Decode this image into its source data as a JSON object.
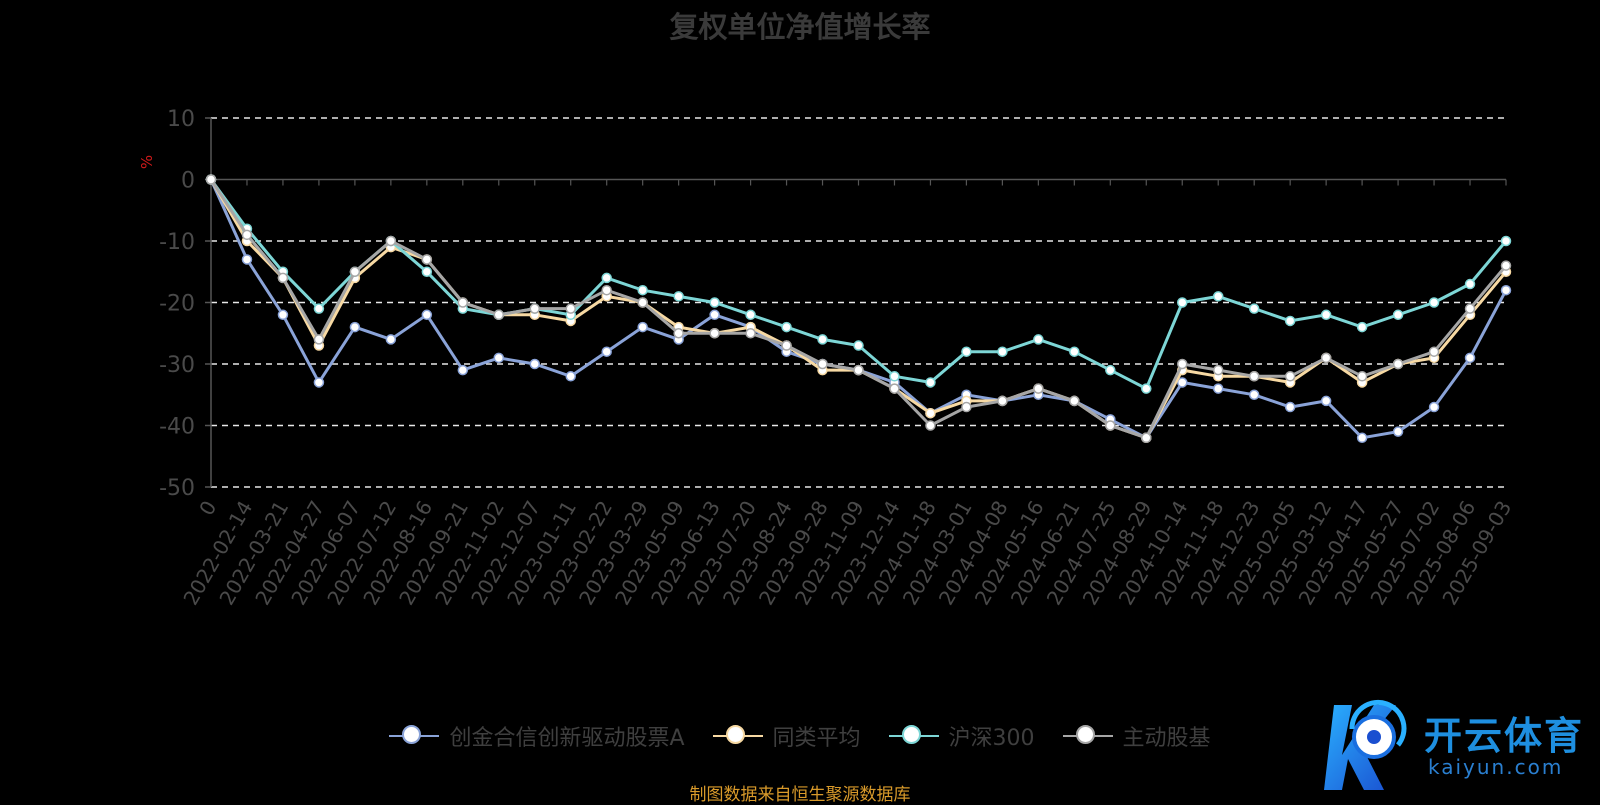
{
  "chart_data": {
    "type": "line",
    "title": "复权单位净值增长率",
    "ylabel": "%",
    "ylim": [
      -50,
      10
    ],
    "yticks": [
      "10",
      "0",
      "-10",
      "-20",
      "-30",
      "-40",
      "-50"
    ],
    "grid": true,
    "legend_position": "bottom",
    "categories": [
      "0",
      "2022-02-14",
      "2022-03-21",
      "2022-04-27",
      "2022-06-07",
      "2022-07-12",
      "2022-08-16",
      "2022-09-21",
      "2022-11-02",
      "2022-12-07",
      "2023-01-11",
      "2023-02-22",
      "2023-03-29",
      "2023-05-09",
      "2023-06-13",
      "2023-07-20",
      "2023-08-24",
      "2023-09-28",
      "2023-11-09",
      "2023-12-14",
      "2024-01-18",
      "2024-03-01",
      "2024-04-08",
      "2024-05-16",
      "2024-06-21",
      "2024-07-25",
      "2024-08-29",
      "2024-10-14",
      "2024-11-18",
      "2024-12-23",
      "2025-02-05",
      "2025-03-12",
      "2025-04-17",
      "2025-05-27",
      "2025-07-02",
      "2025-08-06",
      "2025-09-03"
    ],
    "series": [
      {
        "name": "创金合信创新驱动股票A",
        "color": "#8aa3d8",
        "values": [
          0,
          -13,
          -22,
          -33,
          -24,
          -26,
          -22,
          -31,
          -29,
          -30,
          -32,
          -28,
          -24,
          -26,
          -22,
          -24,
          -28,
          -30,
          -31,
          -33,
          -38,
          -35,
          -36,
          -35,
          -36,
          -39,
          -42,
          -33,
          -34,
          -35,
          -37,
          -36,
          -42,
          -41,
          -37,
          -29,
          -18
        ]
      },
      {
        "name": "同类平均",
        "color": "#f7d9a3",
        "values": [
          0,
          -10,
          -16,
          -27,
          -16,
          -11,
          -13,
          -20,
          -22,
          -22,
          -23,
          -19,
          -20,
          -24,
          -25,
          -24,
          -27,
          -31,
          -31,
          -34,
          -38,
          -36,
          -36,
          -34,
          -36,
          -40,
          -42,
          -31,
          -32,
          -32,
          -33,
          -29,
          -33,
          -30,
          -29,
          -22,
          -15
        ]
      },
      {
        "name": "沪深300",
        "color": "#7dd6d6",
        "values": [
          0,
          -8,
          -15,
          -21,
          -15,
          -10,
          -15,
          -21,
          -22,
          -21,
          -22,
          -16,
          -18,
          -19,
          -20,
          -22,
          -24,
          -26,
          -27,
          -32,
          -33,
          -28,
          -28,
          -26,
          -28,
          -31,
          -34,
          -20,
          -19,
          -21,
          -23,
          -22,
          -24,
          -22,
          -20,
          -17,
          -10
        ]
      },
      {
        "name": "主动股基",
        "color": "#a6a6a6",
        "values": [
          0,
          -9,
          -16,
          -26,
          -15,
          -10,
          -13,
          -20,
          -22,
          -21,
          -21,
          -18,
          -20,
          -25,
          -25,
          -25,
          -27,
          -30,
          -31,
          -34,
          -40,
          -37,
          -36,
          -34,
          -36,
          -40,
          -42,
          -30,
          -31,
          -32,
          -32,
          -29,
          -32,
          -30,
          -28,
          -21,
          -14
        ]
      }
    ]
  },
  "source": "制图数据来自恒生聚源数据库",
  "logo": {
    "cn": "开云体育",
    "en": "kaiyun.com"
  }
}
